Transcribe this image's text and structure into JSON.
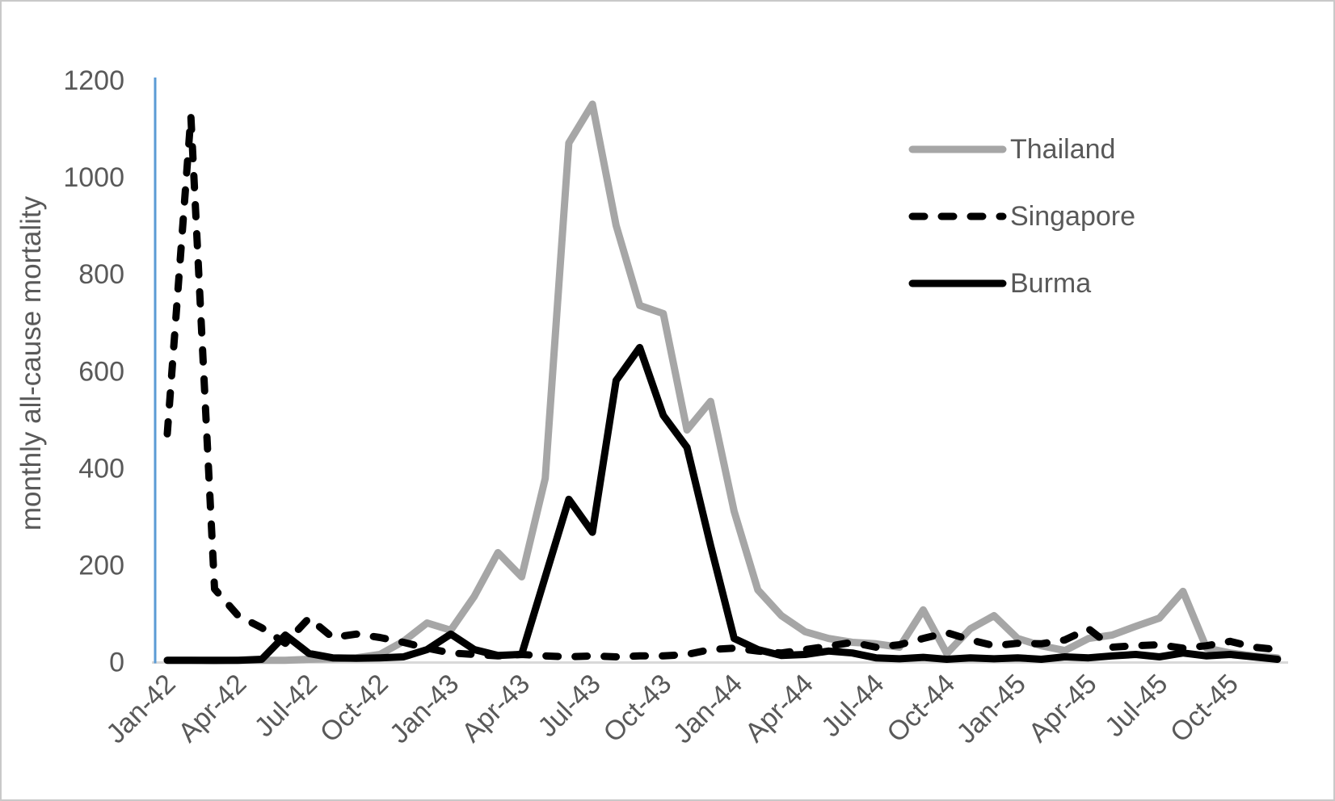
{
  "chart_data": {
    "type": "line",
    "title": "",
    "xlabel": "",
    "ylabel": "monthly all-cause mortality",
    "ylim": [
      0,
      1200
    ],
    "yticks": [
      0,
      200,
      400,
      600,
      800,
      1000,
      1200
    ],
    "grid": "off",
    "legend_position": "upper-right",
    "x_tick_every": 3,
    "x": [
      "Jan-42",
      "Feb-42",
      "Mar-42",
      "Apr-42",
      "May-42",
      "Jun-42",
      "Jul-42",
      "Aug-42",
      "Sep-42",
      "Oct-42",
      "Nov-42",
      "Dec-42",
      "Jan-43",
      "Feb-43",
      "Mar-43",
      "Apr-43",
      "May-43",
      "Jun-43",
      "Jul-43",
      "Aug-43",
      "Sep-43",
      "Oct-43",
      "Nov-43",
      "Dec-43",
      "Jan-44",
      "Feb-44",
      "Mar-44",
      "Apr-44",
      "May-44",
      "Jun-44",
      "Jul-44",
      "Aug-44",
      "Sep-44",
      "Oct-44",
      "Nov-44",
      "Dec-44",
      "Jan-45",
      "Feb-45",
      "Mar-45",
      "Apr-45",
      "May-45",
      "Jun-45",
      "Jul-45",
      "Aug-45",
      "Sep-45",
      "Oct-45",
      "Nov-45",
      "Dec-45"
    ],
    "x_tick_labels": [
      "Jan-42",
      "Apr-42",
      "Jul-42",
      "Oct-42",
      "Jan-43",
      "Apr-43",
      "Jul-43",
      "Oct-43",
      "Jan-44",
      "Apr-44",
      "Jul-44",
      "Oct-44",
      "Jan-45",
      "Apr-45",
      "Jul-45",
      "Oct-45"
    ],
    "series": [
      {
        "name": "Thailand",
        "color": "#A6A6A6",
        "style": "solid",
        "width": 9,
        "values": [
          3,
          3,
          2,
          3,
          3,
          3,
          5,
          6,
          8,
          15,
          42,
          80,
          65,
          135,
          225,
          175,
          378,
          1070,
          1150,
          900,
          735,
          718,
          478,
          537,
          310,
          148,
          95,
          62,
          48,
          40,
          37,
          30,
          107,
          17,
          68,
          95,
          48,
          33,
          23,
          48,
          55,
          73,
          90,
          145,
          28,
          18,
          12,
          8
        ]
      },
      {
        "name": "Singapore",
        "color": "#000000",
        "style": "dashed",
        "width": 9,
        "values": [
          470,
          1125,
          150,
          95,
          70,
          38,
          90,
          50,
          57,
          50,
          40,
          28,
          18,
          15,
          12,
          15,
          12,
          10,
          12,
          10,
          12,
          12,
          15,
          25,
          28,
          22,
          18,
          25,
          32,
          40,
          30,
          35,
          48,
          60,
          45,
          33,
          38,
          37,
          45,
          68,
          30,
          33,
          35,
          28,
          33,
          42,
          30,
          25
        ]
      },
      {
        "name": "Burma",
        "color": "#000000",
        "style": "solid",
        "width": 9,
        "values": [
          3,
          3,
          3,
          3,
          5,
          55,
          17,
          8,
          7,
          8,
          10,
          25,
          57,
          25,
          13,
          15,
          175,
          335,
          267,
          580,
          648,
          508,
          442,
          240,
          48,
          25,
          13,
          15,
          22,
          18,
          8,
          6,
          9,
          5,
          8,
          6,
          8,
          5,
          10,
          8,
          12,
          15,
          10,
          18,
          12,
          15,
          10,
          5
        ]
      }
    ],
    "axis": {
      "y_axis_color": "#5B9BD5",
      "x_axis_color": "#D9D9D9",
      "tick_label_color": "#595959"
    }
  }
}
